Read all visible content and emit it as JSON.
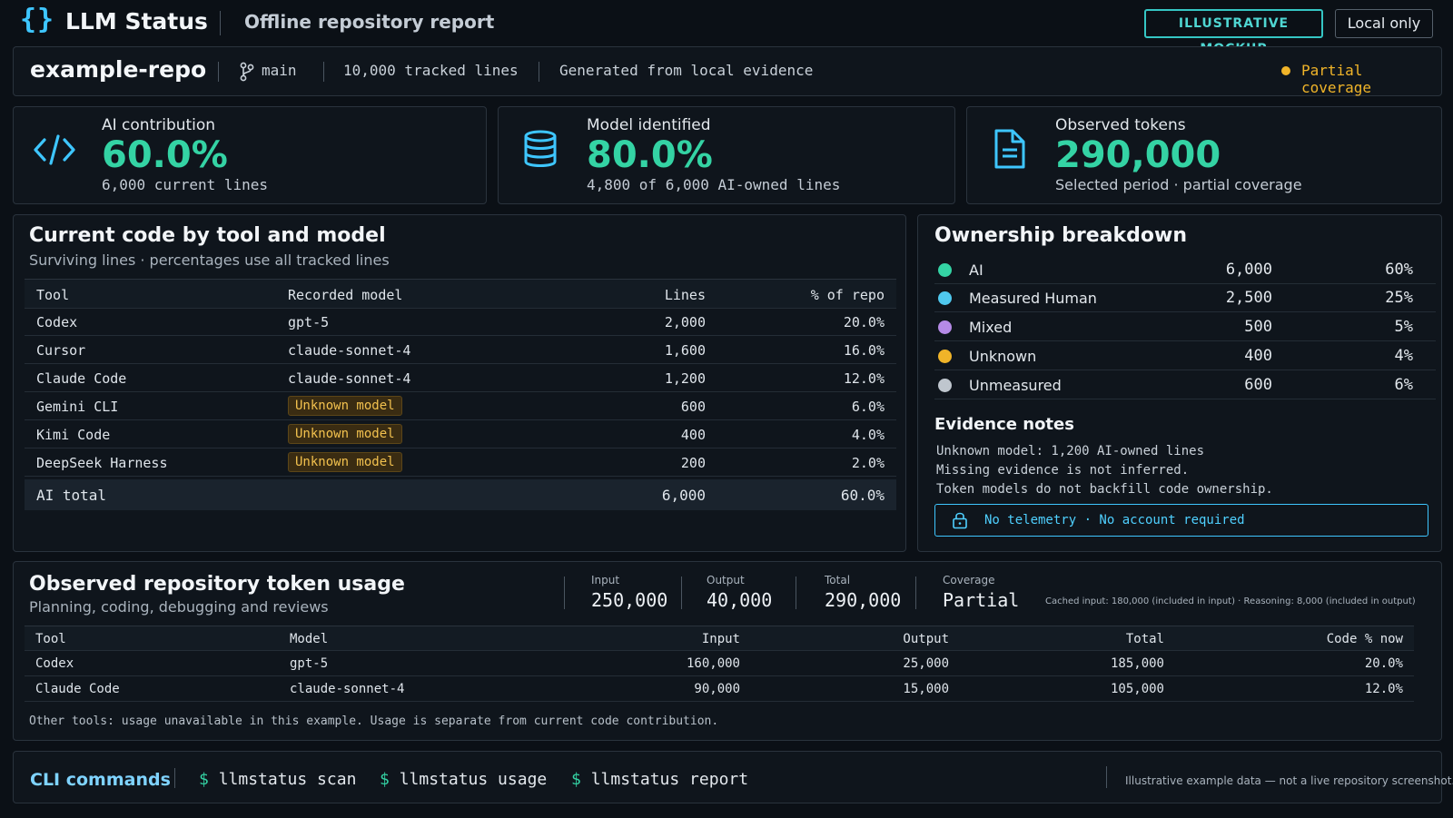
{
  "header": {
    "logo_glyph": "{}",
    "app_title": "LLM Status",
    "subtitle": "Offline repository report",
    "mockup_badge": "ILLUSTRATIVE MOCKUP",
    "local_badge": "Local only"
  },
  "repo": {
    "name": "example-repo",
    "branch": "main",
    "tracked": "10,000 tracked lines",
    "generated": "Generated from local evidence",
    "coverage": "Partial coverage"
  },
  "metrics": [
    {
      "icon": "code-icon",
      "label": "AI contribution",
      "value": "60.0%",
      "sub": "6,000 current lines"
    },
    {
      "icon": "database-icon",
      "label": "Model identified",
      "value": "80.0%",
      "sub": "4,800 of 6,000 AI-owned lines"
    },
    {
      "icon": "document-icon",
      "label": "Observed tokens",
      "value": "290,000",
      "sub": "Selected period · partial coverage"
    }
  ],
  "code_table": {
    "title": "Current code by tool and model",
    "subtitle": "Surviving lines · percentages use all tracked lines",
    "headers": [
      "Tool",
      "Recorded model",
      "Lines",
      "% of repo"
    ],
    "rows": [
      {
        "tool": "Codex",
        "model": "gpt-5",
        "lines": "2,000",
        "pct": "20.0%",
        "unknown": false
      },
      {
        "tool": "Cursor",
        "model": "claude-sonnet-4",
        "lines": "1,600",
        "pct": "16.0%",
        "unknown": false
      },
      {
        "tool": "Claude Code",
        "model": "claude-sonnet-4",
        "lines": "1,200",
        "pct": "12.0%",
        "unknown": false
      },
      {
        "tool": "Gemini CLI",
        "model": "Unknown model",
        "lines": "600",
        "pct": "6.0%",
        "unknown": true
      },
      {
        "tool": "Kimi Code",
        "model": "Unknown model",
        "lines": "400",
        "pct": "4.0%",
        "unknown": true
      },
      {
        "tool": "DeepSeek Harness",
        "model": "Unknown model",
        "lines": "200",
        "pct": "2.0%",
        "unknown": true
      }
    ],
    "total": {
      "label": "AI total",
      "lines": "6,000",
      "pct": "60.0%"
    }
  },
  "ownership": {
    "title": "Ownership breakdown",
    "rows": [
      {
        "label": "AI",
        "count": "6,000",
        "pct": "60%",
        "color": "#34d3a4"
      },
      {
        "label": "Measured Human",
        "count": "2,500",
        "pct": "25%",
        "color": "#4fc8ee"
      },
      {
        "label": "Mixed",
        "count": "500",
        "pct": "5%",
        "color": "#b58ae6"
      },
      {
        "label": "Unknown",
        "count": "400",
        "pct": "4%",
        "color": "#f0b429"
      },
      {
        "label": "Unmeasured",
        "count": "600",
        "pct": "6%",
        "color": "#bfc6ce"
      }
    ],
    "evidence_title": "Evidence notes",
    "evidence": [
      "Unknown model: 1,200 AI-owned lines",
      "Missing evidence is not inferred.",
      "Token models do not backfill code ownership."
    ],
    "privacy": "No telemetry · No account required"
  },
  "tokens": {
    "title": "Observed repository token usage",
    "subtitle": "Planning, coding, debugging and reviews",
    "stats": [
      {
        "label": "Input",
        "value": "250,000"
      },
      {
        "label": "Output",
        "value": "40,000"
      },
      {
        "label": "Total",
        "value": "290,000"
      },
      {
        "label": "Coverage",
        "value": "Partial"
      }
    ],
    "note": "Cached input: 180,000 (included in input) · Reasoning: 8,000 (included in output)",
    "headers": [
      "Tool",
      "Model",
      "Input",
      "Output",
      "Total",
      "Code % now"
    ],
    "rows": [
      {
        "tool": "Codex",
        "model": "gpt-5",
        "input": "160,000",
        "output": "25,000",
        "total": "185,000",
        "code_pct": "20.0%"
      },
      {
        "tool": "Claude Code",
        "model": "claude-sonnet-4",
        "input": "90,000",
        "output": "15,000",
        "total": "105,000",
        "code_pct": "12.0%"
      }
    ],
    "footer": "Other tools: usage unavailable in this example. Usage is separate from current code contribution."
  },
  "cli": {
    "title": "CLI commands",
    "prompt": "$",
    "commands": [
      "llmstatus scan",
      "llmstatus usage",
      "llmstatus report"
    ],
    "note": "Illustrative example data — not a live repository screenshot."
  },
  "colors": {
    "accent_green": "#34d3a4",
    "accent_cyan": "#3ec6ff",
    "warning": "#f0b429",
    "background": "#0b1016"
  }
}
